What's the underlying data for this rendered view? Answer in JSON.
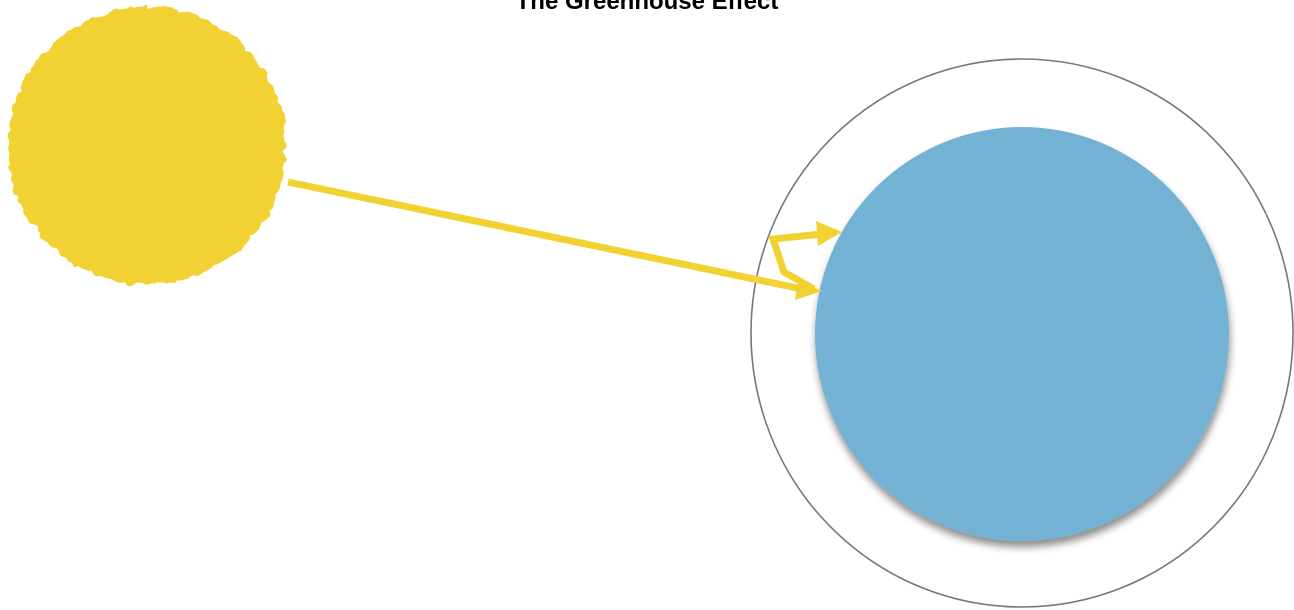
{
  "diagram": {
    "title": "The Greenhouse Effect",
    "colors": {
      "sun": "#F1D231",
      "sun_edge": "#E8C21E",
      "earth": "#6AAFD3",
      "earth_noise": "#4F97C0",
      "atmosphere_stroke": "#777777",
      "radiation": "#F1D231",
      "background": "#FFFFFF"
    },
    "elements": [
      "sun",
      "earth",
      "atmosphere",
      "incoming-radiation-arrow",
      "reflected-radiation-arrow"
    ]
  }
}
